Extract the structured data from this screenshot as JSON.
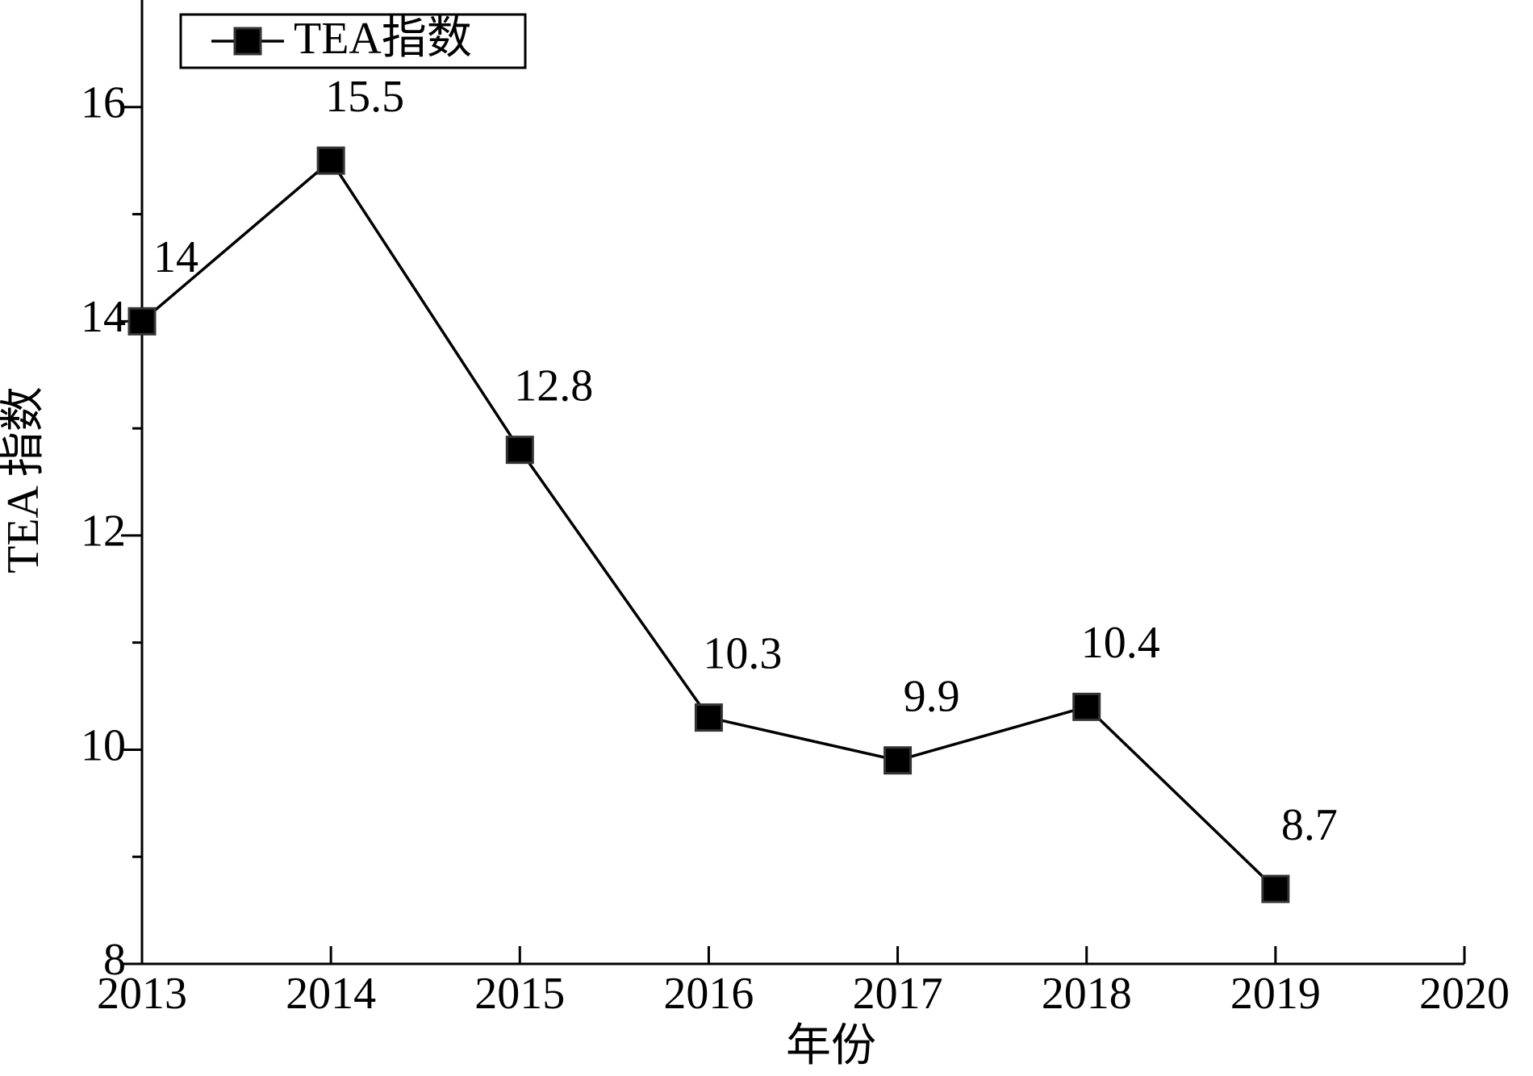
{
  "chart_data": {
    "type": "line",
    "x_label": "年份",
    "y_label": "TEA 指数",
    "x": [
      2013,
      2014,
      2015,
      2016,
      2017,
      2018,
      2019
    ],
    "series": [
      {
        "name": "TEA指数",
        "color": "#000000",
        "values": [
          14,
          15.5,
          12.8,
          10.3,
          9.9,
          10.4,
          8.7
        ]
      }
    ],
    "xlim": [
      2013,
      2020
    ],
    "xticks": [
      2013,
      2014,
      2015,
      2016,
      2017,
      2018,
      2019,
      2020
    ],
    "ylim": [
      8,
      17
    ],
    "yticks": [
      8,
      10,
      12,
      14,
      16
    ],
    "grid": false,
    "legend": "upper left"
  }
}
